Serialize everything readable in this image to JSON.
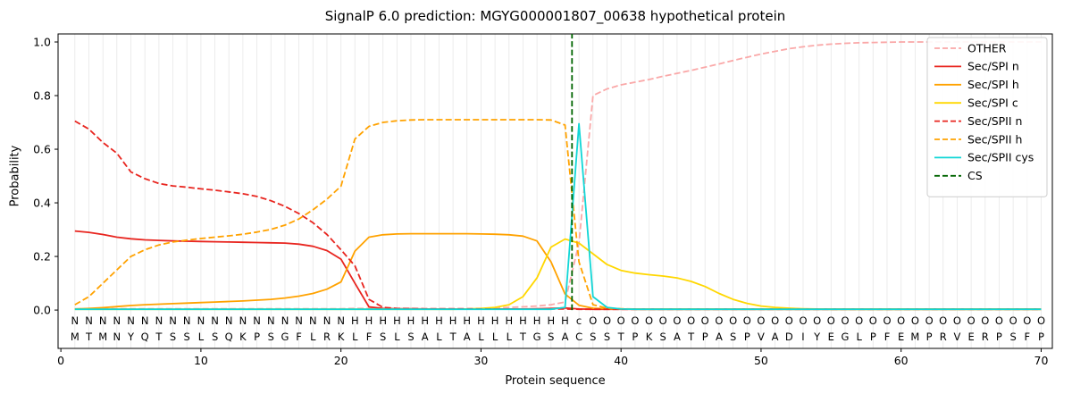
{
  "chart_data": {
    "type": "line",
    "title": "SignalP 6.0 prediction: MGYG000001807_00638 hypothetical protein",
    "xlabel": "Protein sequence",
    "ylabel": "Probability",
    "xlim": [
      -0.2,
      70.8
    ],
    "ylim": [
      -0.143,
      1.03
    ],
    "x_ticks": [
      0,
      10,
      20,
      30,
      40,
      50,
      60,
      70
    ],
    "y_tick_values": [
      0,
      0.2,
      0.4,
      0.6,
      0.8,
      1.0
    ],
    "y_tick_labels": [
      "0.0",
      "0.2",
      "0.4",
      "0.6",
      "0.8",
      "1.0"
    ],
    "grid": {
      "vertical_every_residue": true,
      "color": "#e7e7e7"
    },
    "legend_position": "upper right",
    "x_positions": "residues 1-70",
    "series": [
      {
        "name": "OTHER",
        "color": "#faa8a8",
        "style": "dashed",
        "values": [
          0.005,
          0.005,
          0.005,
          0.005,
          0.005,
          0.005,
          0.005,
          0.005,
          0.005,
          0.005,
          0.005,
          0.005,
          0.005,
          0.005,
          0.005,
          0.005,
          0.005,
          0.005,
          0.005,
          0.005,
          0.006,
          0.006,
          0.006,
          0.006,
          0.006,
          0.006,
          0.006,
          0.006,
          0.006,
          0.006,
          0.008,
          0.01,
          0.012,
          0.015,
          0.02,
          0.03,
          0.25,
          0.8,
          0.825,
          0.84,
          0.85,
          0.86,
          0.872,
          0.883,
          0.894,
          0.906,
          0.918,
          0.931,
          0.943,
          0.955,
          0.965,
          0.975,
          0.982,
          0.988,
          0.992,
          0.995,
          0.997,
          0.998,
          0.999,
          1.0,
          1.0,
          1.0,
          1.0,
          1.0,
          1.0,
          1.0,
          1.0,
          1.0,
          1.0,
          1.0
        ]
      },
      {
        "name": "Sec/SPI n",
        "color": "#e8251f",
        "style": "solid",
        "values": [
          0.295,
          0.29,
          0.282,
          0.272,
          0.266,
          0.262,
          0.26,
          0.258,
          0.257,
          0.256,
          0.255,
          0.254,
          0.253,
          0.252,
          0.251,
          0.25,
          0.246,
          0.238,
          0.222,
          0.19,
          0.1,
          0.012,
          0.006,
          0.005,
          0.005,
          0.004,
          0.004,
          0.004,
          0.004,
          0.004,
          0.004,
          0.004,
          0.004,
          0.005,
          0.006,
          0.008,
          0.004,
          0.003,
          0.003,
          0.003,
          0.003,
          0.003,
          0.003,
          0.003,
          0.003,
          0.003,
          0.003,
          0.003,
          0.003,
          0.003,
          0.003,
          0.003,
          0.003,
          0.003,
          0.003,
          0.003,
          0.003,
          0.003,
          0.003,
          0.003,
          0.003,
          0.003,
          0.003,
          0.003,
          0.003,
          0.003,
          0.003,
          0.003,
          0.003,
          0.003
        ]
      },
      {
        "name": "Sec/SPI h",
        "color": "#ffa200",
        "style": "solid",
        "values": [
          0.004,
          0.006,
          0.009,
          0.013,
          0.017,
          0.02,
          0.022,
          0.024,
          0.026,
          0.028,
          0.03,
          0.032,
          0.034,
          0.037,
          0.04,
          0.045,
          0.052,
          0.062,
          0.078,
          0.105,
          0.22,
          0.272,
          0.281,
          0.284,
          0.285,
          0.285,
          0.285,
          0.285,
          0.285,
          0.284,
          0.283,
          0.281,
          0.276,
          0.258,
          0.18,
          0.06,
          0.018,
          0.007,
          0.005,
          0.004,
          0.003,
          0.003,
          0.003,
          0.003,
          0.003,
          0.003,
          0.003,
          0.003,
          0.003,
          0.003,
          0.003,
          0.003,
          0.003,
          0.003,
          0.003,
          0.003,
          0.003,
          0.003,
          0.003,
          0.003,
          0.003,
          0.003,
          0.003,
          0.003,
          0.003,
          0.003,
          0.003,
          0.003,
          0.003,
          0.003
        ]
      },
      {
        "name": "Sec/SPI c",
        "color": "#ffd700",
        "style": "solid",
        "values": [
          0.003,
          0.003,
          0.003,
          0.003,
          0.003,
          0.003,
          0.003,
          0.003,
          0.003,
          0.003,
          0.003,
          0.003,
          0.003,
          0.003,
          0.003,
          0.003,
          0.003,
          0.003,
          0.003,
          0.003,
          0.003,
          0.003,
          0.003,
          0.003,
          0.003,
          0.003,
          0.003,
          0.003,
          0.004,
          0.006,
          0.01,
          0.02,
          0.05,
          0.12,
          0.235,
          0.265,
          0.25,
          0.21,
          0.17,
          0.148,
          0.138,
          0.132,
          0.127,
          0.12,
          0.107,
          0.088,
          0.062,
          0.04,
          0.025,
          0.015,
          0.01,
          0.007,
          0.005,
          0.004,
          0.003,
          0.003,
          0.003,
          0.003,
          0.003,
          0.003,
          0.003,
          0.003,
          0.003,
          0.003,
          0.003,
          0.003,
          0.003,
          0.003,
          0.003,
          0.003
        ]
      },
      {
        "name": "Sec/SPII n",
        "color": "#e8251f",
        "style": "dashed",
        "values": [
          0.705,
          0.675,
          0.625,
          0.585,
          0.515,
          0.49,
          0.472,
          0.463,
          0.458,
          0.452,
          0.447,
          0.441,
          0.434,
          0.424,
          0.408,
          0.387,
          0.36,
          0.326,
          0.282,
          0.225,
          0.165,
          0.04,
          0.01,
          0.006,
          0.005,
          0.004,
          0.004,
          0.004,
          0.004,
          0.004,
          0.004,
          0.004,
          0.004,
          0.004,
          0.004,
          0.004,
          0.003,
          0.003,
          0.003,
          0.003,
          0.003,
          0.003,
          0.003,
          0.003,
          0.003,
          0.003,
          0.003,
          0.003,
          0.003,
          0.003,
          0.003,
          0.003,
          0.003,
          0.003,
          0.003,
          0.003,
          0.003,
          0.003,
          0.003,
          0.003,
          0.003,
          0.003,
          0.003,
          0.003,
          0.003,
          0.003,
          0.003,
          0.003,
          0.003,
          0.003
        ]
      },
      {
        "name": "Sec/SPII h",
        "color": "#ffa200",
        "style": "dashed",
        "values": [
          0.02,
          0.05,
          0.1,
          0.15,
          0.2,
          0.225,
          0.243,
          0.254,
          0.261,
          0.267,
          0.272,
          0.277,
          0.283,
          0.291,
          0.301,
          0.317,
          0.34,
          0.374,
          0.414,
          0.462,
          0.638,
          0.685,
          0.7,
          0.706,
          0.709,
          0.71,
          0.71,
          0.71,
          0.71,
          0.71,
          0.71,
          0.71,
          0.71,
          0.71,
          0.709,
          0.69,
          0.18,
          0.02,
          0.007,
          0.005,
          0.004,
          0.004,
          0.004,
          0.004,
          0.004,
          0.004,
          0.004,
          0.004,
          0.004,
          0.004,
          0.004,
          0.004,
          0.004,
          0.004,
          0.004,
          0.004,
          0.004,
          0.004,
          0.004,
          0.004,
          0.004,
          0.004,
          0.004,
          0.004,
          0.004,
          0.004,
          0.004,
          0.004,
          0.004,
          0.004
        ]
      },
      {
        "name": "Sec/SPII cys",
        "color": "#10d6d6",
        "style": "solid",
        "values": [
          0.003,
          0.003,
          0.003,
          0.003,
          0.003,
          0.003,
          0.003,
          0.003,
          0.003,
          0.003,
          0.003,
          0.003,
          0.003,
          0.003,
          0.003,
          0.003,
          0.003,
          0.003,
          0.003,
          0.003,
          0.003,
          0.003,
          0.003,
          0.003,
          0.003,
          0.003,
          0.003,
          0.003,
          0.003,
          0.003,
          0.003,
          0.003,
          0.003,
          0.003,
          0.003,
          0.01,
          0.695,
          0.05,
          0.01,
          0.004,
          0.003,
          0.003,
          0.003,
          0.003,
          0.003,
          0.003,
          0.003,
          0.003,
          0.003,
          0.003,
          0.003,
          0.003,
          0.003,
          0.003,
          0.003,
          0.003,
          0.003,
          0.003,
          0.003,
          0.003,
          0.003,
          0.003,
          0.003,
          0.003,
          0.003,
          0.003,
          0.003,
          0.003,
          0.003,
          0.003
        ]
      }
    ],
    "cs_marker": {
      "label": "CS",
      "position": 36.5,
      "color": "#006400",
      "style": "dashed"
    },
    "region_row": {
      "labels": "NNNNNNNNNNNNNNNNNNNNHHHHHHHHHHHHHHHHcOOOOOOOOOOOOOOOOOOOOOOOOOOOOOOOOO",
      "colors": {
        "N": "#e8251f",
        "H": "#ffa200",
        "c": "#10d6d6",
        "O": "#a8a8a8"
      }
    },
    "sequence_row": {
      "residues": "MTMNYQTSSLSQKPSGFLRKLFSLSALTALLLTGSACSSTPKSATPASPVADIYEGLPFEMPRVERPSFP",
      "color": "#000000"
    }
  }
}
